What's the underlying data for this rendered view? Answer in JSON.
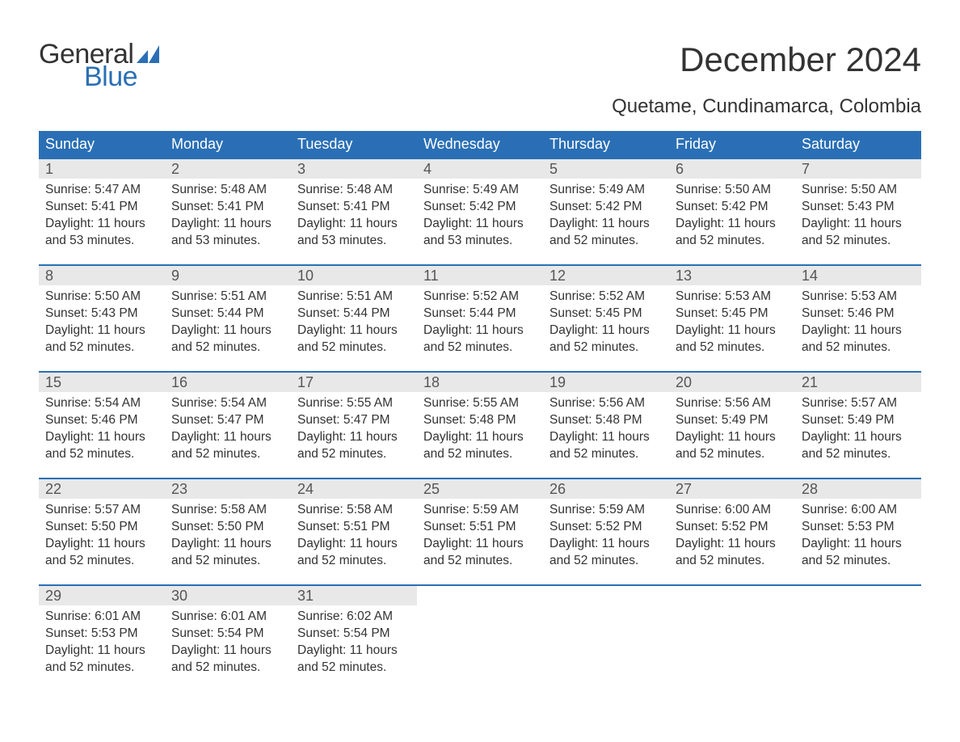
{
  "logo": {
    "word1": "General",
    "word2": "Blue",
    "logo_color": "#2a6fb5"
  },
  "title": "December 2024",
  "subtitle": "Quetame, Cundinamarca, Colombia",
  "colors": {
    "header_bg": "#2a6fb5",
    "header_text": "#ffffff",
    "daynum_bg": "#e8e8e8",
    "text": "#333333",
    "row_border": "#2a6fb5",
    "page_bg": "#ffffff"
  },
  "weekday_labels": [
    "Sunday",
    "Monday",
    "Tuesday",
    "Wednesday",
    "Thursday",
    "Friday",
    "Saturday"
  ],
  "days": [
    {
      "n": "1",
      "sunrise": "Sunrise: 5:47 AM",
      "sunset": "Sunset: 5:41 PM",
      "day1": "Daylight: 11 hours",
      "day2": "and 53 minutes."
    },
    {
      "n": "2",
      "sunrise": "Sunrise: 5:48 AM",
      "sunset": "Sunset: 5:41 PM",
      "day1": "Daylight: 11 hours",
      "day2": "and 53 minutes."
    },
    {
      "n": "3",
      "sunrise": "Sunrise: 5:48 AM",
      "sunset": "Sunset: 5:41 PM",
      "day1": "Daylight: 11 hours",
      "day2": "and 53 minutes."
    },
    {
      "n": "4",
      "sunrise": "Sunrise: 5:49 AM",
      "sunset": "Sunset: 5:42 PM",
      "day1": "Daylight: 11 hours",
      "day2": "and 53 minutes."
    },
    {
      "n": "5",
      "sunrise": "Sunrise: 5:49 AM",
      "sunset": "Sunset: 5:42 PM",
      "day1": "Daylight: 11 hours",
      "day2": "and 52 minutes."
    },
    {
      "n": "6",
      "sunrise": "Sunrise: 5:50 AM",
      "sunset": "Sunset: 5:42 PM",
      "day1": "Daylight: 11 hours",
      "day2": "and 52 minutes."
    },
    {
      "n": "7",
      "sunrise": "Sunrise: 5:50 AM",
      "sunset": "Sunset: 5:43 PM",
      "day1": "Daylight: 11 hours",
      "day2": "and 52 minutes."
    },
    {
      "n": "8",
      "sunrise": "Sunrise: 5:50 AM",
      "sunset": "Sunset: 5:43 PM",
      "day1": "Daylight: 11 hours",
      "day2": "and 52 minutes."
    },
    {
      "n": "9",
      "sunrise": "Sunrise: 5:51 AM",
      "sunset": "Sunset: 5:44 PM",
      "day1": "Daylight: 11 hours",
      "day2": "and 52 minutes."
    },
    {
      "n": "10",
      "sunrise": "Sunrise: 5:51 AM",
      "sunset": "Sunset: 5:44 PM",
      "day1": "Daylight: 11 hours",
      "day2": "and 52 minutes."
    },
    {
      "n": "11",
      "sunrise": "Sunrise: 5:52 AM",
      "sunset": "Sunset: 5:44 PM",
      "day1": "Daylight: 11 hours",
      "day2": "and 52 minutes."
    },
    {
      "n": "12",
      "sunrise": "Sunrise: 5:52 AM",
      "sunset": "Sunset: 5:45 PM",
      "day1": "Daylight: 11 hours",
      "day2": "and 52 minutes."
    },
    {
      "n": "13",
      "sunrise": "Sunrise: 5:53 AM",
      "sunset": "Sunset: 5:45 PM",
      "day1": "Daylight: 11 hours",
      "day2": "and 52 minutes."
    },
    {
      "n": "14",
      "sunrise": "Sunrise: 5:53 AM",
      "sunset": "Sunset: 5:46 PM",
      "day1": "Daylight: 11 hours",
      "day2": "and 52 minutes."
    },
    {
      "n": "15",
      "sunrise": "Sunrise: 5:54 AM",
      "sunset": "Sunset: 5:46 PM",
      "day1": "Daylight: 11 hours",
      "day2": "and 52 minutes."
    },
    {
      "n": "16",
      "sunrise": "Sunrise: 5:54 AM",
      "sunset": "Sunset: 5:47 PM",
      "day1": "Daylight: 11 hours",
      "day2": "and 52 minutes."
    },
    {
      "n": "17",
      "sunrise": "Sunrise: 5:55 AM",
      "sunset": "Sunset: 5:47 PM",
      "day1": "Daylight: 11 hours",
      "day2": "and 52 minutes."
    },
    {
      "n": "18",
      "sunrise": "Sunrise: 5:55 AM",
      "sunset": "Sunset: 5:48 PM",
      "day1": "Daylight: 11 hours",
      "day2": "and 52 minutes."
    },
    {
      "n": "19",
      "sunrise": "Sunrise: 5:56 AM",
      "sunset": "Sunset: 5:48 PM",
      "day1": "Daylight: 11 hours",
      "day2": "and 52 minutes."
    },
    {
      "n": "20",
      "sunrise": "Sunrise: 5:56 AM",
      "sunset": "Sunset: 5:49 PM",
      "day1": "Daylight: 11 hours",
      "day2": "and 52 minutes."
    },
    {
      "n": "21",
      "sunrise": "Sunrise: 5:57 AM",
      "sunset": "Sunset: 5:49 PM",
      "day1": "Daylight: 11 hours",
      "day2": "and 52 minutes."
    },
    {
      "n": "22",
      "sunrise": "Sunrise: 5:57 AM",
      "sunset": "Sunset: 5:50 PM",
      "day1": "Daylight: 11 hours",
      "day2": "and 52 minutes."
    },
    {
      "n": "23",
      "sunrise": "Sunrise: 5:58 AM",
      "sunset": "Sunset: 5:50 PM",
      "day1": "Daylight: 11 hours",
      "day2": "and 52 minutes."
    },
    {
      "n": "24",
      "sunrise": "Sunrise: 5:58 AM",
      "sunset": "Sunset: 5:51 PM",
      "day1": "Daylight: 11 hours",
      "day2": "and 52 minutes."
    },
    {
      "n": "25",
      "sunrise": "Sunrise: 5:59 AM",
      "sunset": "Sunset: 5:51 PM",
      "day1": "Daylight: 11 hours",
      "day2": "and 52 minutes."
    },
    {
      "n": "26",
      "sunrise": "Sunrise: 5:59 AM",
      "sunset": "Sunset: 5:52 PM",
      "day1": "Daylight: 11 hours",
      "day2": "and 52 minutes."
    },
    {
      "n": "27",
      "sunrise": "Sunrise: 6:00 AM",
      "sunset": "Sunset: 5:52 PM",
      "day1": "Daylight: 11 hours",
      "day2": "and 52 minutes."
    },
    {
      "n": "28",
      "sunrise": "Sunrise: 6:00 AM",
      "sunset": "Sunset: 5:53 PM",
      "day1": "Daylight: 11 hours",
      "day2": "and 52 minutes."
    },
    {
      "n": "29",
      "sunrise": "Sunrise: 6:01 AM",
      "sunset": "Sunset: 5:53 PM",
      "day1": "Daylight: 11 hours",
      "day2": "and 52 minutes."
    },
    {
      "n": "30",
      "sunrise": "Sunrise: 6:01 AM",
      "sunset": "Sunset: 5:54 PM",
      "day1": "Daylight: 11 hours",
      "day2": "and 52 minutes."
    },
    {
      "n": "31",
      "sunrise": "Sunrise: 6:02 AM",
      "sunset": "Sunset: 5:54 PM",
      "day1": "Daylight: 11 hours",
      "day2": "and 52 minutes."
    }
  ],
  "layout": {
    "first_weekday_index": 0,
    "weeks": 5,
    "cols": 7,
    "font_family": "Arial",
    "title_fontsize": 42,
    "subtitle_fontsize": 24,
    "header_fontsize": 18,
    "daynum_fontsize": 18,
    "body_fontsize": 15.5
  }
}
